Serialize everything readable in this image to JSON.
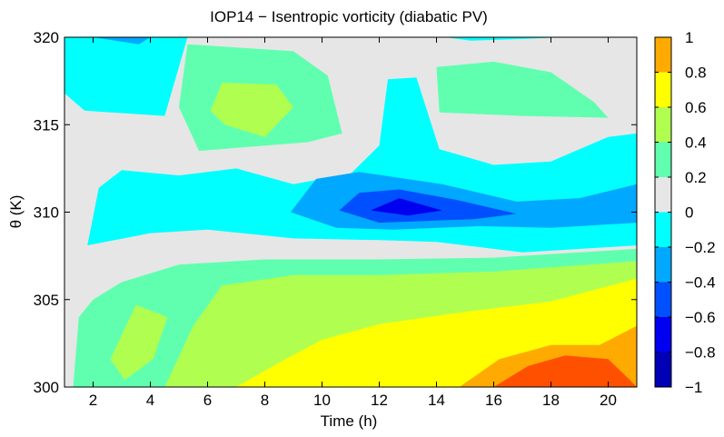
{
  "chart_data": {
    "type": "contour",
    "title": "IOP14 − Isentropic vorticity (diabatic PV)",
    "xlabel": "Time (h)",
    "ylabel": "θ (K)",
    "xlim": [
      1,
      21
    ],
    "ylim": [
      300,
      320
    ],
    "xticks": [
      2,
      4,
      6,
      8,
      10,
      12,
      14,
      16,
      18,
      20
    ],
    "yticks": [
      300,
      305,
      310,
      315,
      320
    ],
    "colorbar": {
      "levels": [
        -1,
        -0.8,
        -0.6,
        -0.4,
        -0.2,
        0,
        0.2,
        0.4,
        0.6,
        0.8,
        1
      ],
      "tick_labels": [
        "−1",
        "−0.8",
        "−0.6",
        "−0.4",
        "−0.2",
        "0",
        "0.2",
        "0.4",
        "0.6",
        "0.8",
        "1"
      ],
      "colors": [
        "#0000b4",
        "#0000f0",
        "#0050ff",
        "#00a8ff",
        "#00ffff",
        "#e6e6e6",
        "#60ffb0",
        "#b0ff50",
        "#ffff00",
        "#ffaa00",
        "#ff5000"
      ]
    },
    "regions": [
      {
        "level": "0 to 0.2",
        "color": "#60ffb0",
        "points": [
          [
            1,
            300
          ],
          [
            1.3,
            300
          ],
          [
            1.5,
            304
          ],
          [
            2,
            305
          ],
          [
            3,
            306
          ],
          [
            5,
            307
          ],
          [
            8,
            307.3
          ],
          [
            12,
            307.3
          ],
          [
            16,
            307.4
          ],
          [
            21,
            307.9
          ],
          [
            21,
            300
          ]
        ]
      },
      {
        "level": "0.2 to 0.4",
        "color": "#b0ff50",
        "points": [
          [
            4.5,
            300
          ],
          [
            5.5,
            303.5
          ],
          [
            6.5,
            305.8
          ],
          [
            9,
            306.4
          ],
          [
            12,
            306.4
          ],
          [
            16,
            306.6
          ],
          [
            21,
            307.2
          ],
          [
            21,
            300
          ]
        ]
      },
      {
        "level": "0.2 to 0.4",
        "color": "#b0ff50",
        "points": [
          [
            2.6,
            301.6
          ],
          [
            3.5,
            304.7
          ],
          [
            4.6,
            304
          ],
          [
            4.1,
            301.6
          ],
          [
            3.1,
            300.4
          ]
        ]
      },
      {
        "level": "0.4 to 0.6",
        "color": "#ffff00",
        "points": [
          [
            7,
            300
          ],
          [
            8.5,
            301.4
          ],
          [
            10,
            302.7
          ],
          [
            12,
            303.6
          ],
          [
            15,
            304.3
          ],
          [
            18,
            304.9
          ],
          [
            21,
            306.2
          ],
          [
            21,
            300
          ]
        ]
      },
      {
        "level": "0.6 to 0.8",
        "color": "#ffaa00",
        "points": [
          [
            14.8,
            300
          ],
          [
            16.2,
            301.6
          ],
          [
            18,
            302.4
          ],
          [
            19.7,
            302.4
          ],
          [
            21,
            303.5
          ],
          [
            21,
            300
          ]
        ]
      },
      {
        "level": "0.8 to 1",
        "color": "#ff5000",
        "points": [
          [
            16,
            300
          ],
          [
            17.2,
            301.2
          ],
          [
            18.5,
            301.8
          ],
          [
            20,
            301.6
          ],
          [
            20.7,
            300.5
          ],
          [
            21,
            300
          ]
        ]
      },
      {
        "level": "-0.2 to 0",
        "color": "#00ffff",
        "points": [
          [
            1.8,
            308.1
          ],
          [
            2.2,
            311.4
          ],
          [
            3,
            312.4
          ],
          [
            5,
            312.1
          ],
          [
            7,
            312.5
          ],
          [
            9,
            311.6
          ],
          [
            11,
            312.2
          ],
          [
            12,
            313.8
          ],
          [
            12.3,
            317.6
          ],
          [
            13.3,
            317.7
          ],
          [
            14.1,
            313.6
          ],
          [
            16,
            312.7
          ],
          [
            18,
            312.9
          ],
          [
            20,
            314.3
          ],
          [
            21,
            314.5
          ],
          [
            21,
            308.1
          ],
          [
            17,
            307.7
          ],
          [
            14,
            308.3
          ],
          [
            12,
            308.4
          ],
          [
            9,
            308.5
          ],
          [
            6,
            309
          ],
          [
            4,
            308.8
          ]
        ]
      },
      {
        "level": "-0.2 to 0",
        "color": "#00ffff",
        "points": [
          [
            1,
            320
          ],
          [
            5.3,
            320
          ],
          [
            4.5,
            315.5
          ],
          [
            1.7,
            315.8
          ],
          [
            1,
            316.8
          ]
        ]
      },
      {
        "level": "-0.2 to 0",
        "color": "#00ffff",
        "points": [
          [
            14.3,
            320
          ],
          [
            15.2,
            319.8
          ],
          [
            17,
            319.9
          ],
          [
            18.4,
            320
          ]
        ]
      },
      {
        "level": "-0.4 to -0.2",
        "color": "#00a8ff",
        "points": [
          [
            8.9,
            310
          ],
          [
            9.8,
            311.9
          ],
          [
            11.3,
            312.3
          ],
          [
            14.2,
            311.6
          ],
          [
            16.8,
            310.6
          ],
          [
            19,
            310.8
          ],
          [
            21,
            311.6
          ],
          [
            21,
            309.4
          ],
          [
            18,
            309.1
          ],
          [
            15.5,
            309.2
          ],
          [
            12.5,
            309
          ],
          [
            10.5,
            309.1
          ]
        ]
      },
      {
        "level": "-0.4 to -0.2",
        "color": "#00a8ff",
        "points": [
          [
            2,
            320
          ],
          [
            3.6,
            319.6
          ],
          [
            4,
            320
          ]
        ]
      },
      {
        "level": "-0.6 to -0.4",
        "color": "#0050ff",
        "points": [
          [
            10.6,
            310.1
          ],
          [
            11.3,
            311.1
          ],
          [
            12.7,
            311.3
          ],
          [
            14.7,
            310.7
          ],
          [
            16.8,
            309.9
          ],
          [
            15.3,
            309.6
          ],
          [
            12,
            309.4
          ]
        ]
      },
      {
        "level": "-0.8 to -0.6",
        "color": "#0000f0",
        "points": [
          [
            11.7,
            310.1
          ],
          [
            12.7,
            310.8
          ],
          [
            14.2,
            310.1
          ],
          [
            13,
            309.8
          ]
        ]
      },
      {
        "level": "0 to 0.2",
        "color": "#60ffb0",
        "points": [
          [
            5.7,
            313.5
          ],
          [
            9.5,
            314
          ],
          [
            10.7,
            314.5
          ],
          [
            10.2,
            317.8
          ],
          [
            9,
            319.2
          ],
          [
            5.3,
            319.6
          ],
          [
            5,
            316
          ]
        ]
      },
      {
        "level": "0 to 0.2",
        "color": "#60ffb0",
        "points": [
          [
            14.1,
            315.7
          ],
          [
            17,
            315.5
          ],
          [
            20,
            315.4
          ],
          [
            19.5,
            316.3
          ],
          [
            18,
            318
          ],
          [
            16,
            318.6
          ],
          [
            14,
            318.3
          ]
        ]
      },
      {
        "level": "0.2 to 0.4",
        "color": "#b0ff50",
        "points": [
          [
            6.1,
            315.8
          ],
          [
            6.5,
            317.4
          ],
          [
            8.4,
            317.3
          ],
          [
            9,
            316
          ],
          [
            8,
            314.3
          ],
          [
            6.6,
            315
          ]
        ]
      }
    ]
  }
}
